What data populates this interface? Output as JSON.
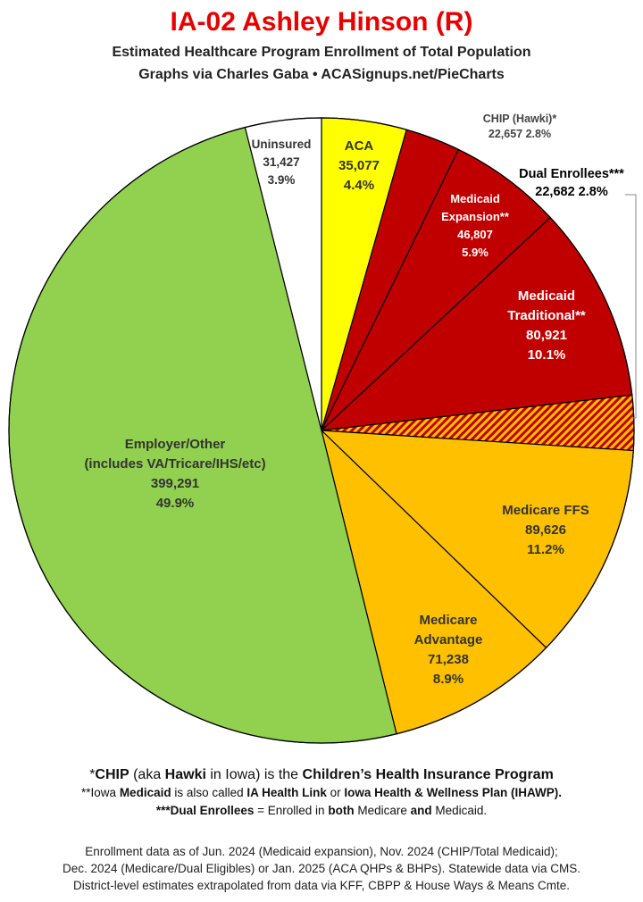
{
  "header": {
    "title": "IA-02 Ashley Hinson (R)",
    "subtitle_1": "Estimated Healthcare Program Enrollment of Total Population",
    "subtitle_2": "Graphs via Charles Gaba  •  ACASignups.net/PieCharts"
  },
  "chart_data": {
    "type": "pie",
    "start_angle_deg": 0,
    "direction": "clockwise",
    "slices": [
      {
        "label": "ACA",
        "value": 35077,
        "value_text": "35,077",
        "percent": "4.4%",
        "color": "#ffff00",
        "text_color": "#333333"
      },
      {
        "label": "CHIP (Hawki)*",
        "value": 22657,
        "value_text": "22,657",
        "percent": "2.8%",
        "color": "#c00000",
        "text_color": "#444444"
      },
      {
        "label": "Medicaid Expansion**",
        "value": 46807,
        "value_text": "46,807",
        "percent": "5.9%",
        "color": "#c00000",
        "text_color": "#ffffff"
      },
      {
        "label": "Medicaid Traditional**",
        "value": 80921,
        "value_text": "80,921",
        "percent": "10.1%",
        "color": "#c00000",
        "text_color": "#ffffff"
      },
      {
        "label": "Dual Enrollees***",
        "value": 22682,
        "value_text": "22,682",
        "percent": "2.8%",
        "color": "#c00000",
        "hatch": "#ffc000",
        "text_color": "#000000"
      },
      {
        "label": "Medicare FFS",
        "value": 89626,
        "value_text": "89,626",
        "percent": "11.2%",
        "color": "#ffc000",
        "text_color": "#333333"
      },
      {
        "label": "Medicare Advantage",
        "value": 71238,
        "value_text": "71,238",
        "percent": "8.9%",
        "color": "#ffc000",
        "text_color": "#333333"
      },
      {
        "label": "Employer/Other (includes VA/Tricare/IHS/etc)",
        "value": 399291,
        "value_text": "399,291",
        "percent": "49.9%",
        "color": "#92d050",
        "text_color": "#333333"
      },
      {
        "label": "Uninsured",
        "value": 31427,
        "value_text": "31,427",
        "percent": "3.9%",
        "color": "#ffffff",
        "text_color": "#333333"
      }
    ]
  },
  "footnotes": {
    "chip_note": "*CHIP (aka Hawki in Iowa) is the Children’s Health Insurance Program",
    "medicaid_note": "**Iowa Medicaid is also called IA Health Link or Iowa Health & Wellness Plan (IHAWP).",
    "dual_note": "***Dual Enrollees = Enrolled in both Medicare and Medicaid."
  },
  "sources": {
    "line_1": "Enrollment data as of Jun. 2024 (Medicaid expansion), Nov. 2024 (CHIP/Total Medicaid);",
    "line_2": "Dec. 2024 (Medicare/Dual Eligibles) or Jan. 2025 (ACA QHPs & BHPs). Statewide data via CMS.",
    "line_3": "District-level estimates extrapolated from data via KFF, CBPP & House Ways & Means Cmte."
  }
}
